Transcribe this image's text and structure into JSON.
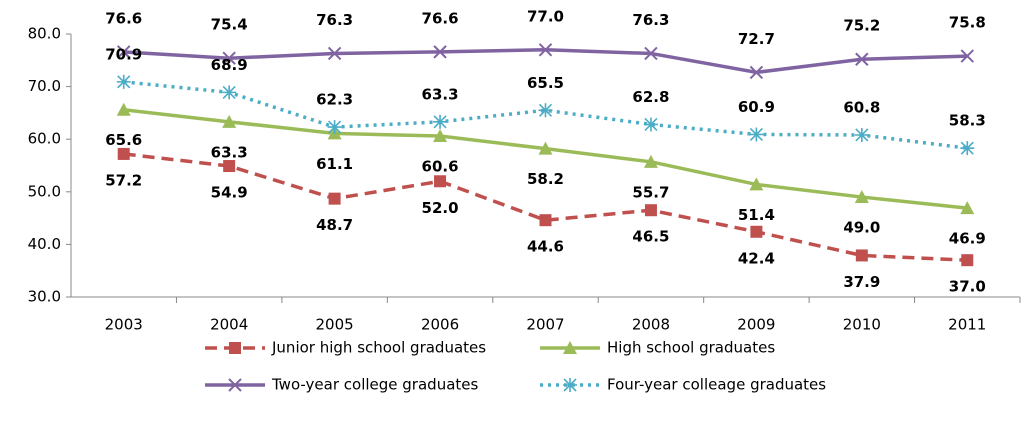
{
  "chart_data": {
    "type": "line",
    "categories": [
      "2003",
      "2004",
      "2005",
      "2006",
      "2007",
      "2008",
      "2009",
      "2010",
      "2011"
    ],
    "series": [
      {
        "name": "Junior high school graduates",
        "color": "#c0504d",
        "dash": "dashed",
        "marker": "square",
        "values": [
          57.2,
          54.9,
          48.7,
          52.0,
          44.6,
          46.5,
          42.4,
          37.9,
          37.0
        ],
        "value_labels": [
          "57.2",
          "54.9",
          "48.7",
          "52.0",
          "44.6",
          "46.5",
          "42.4",
          "37.9",
          "37.0"
        ]
      },
      {
        "name": "High school graduates",
        "color": "#9bbb59",
        "dash": "solid",
        "marker": "triangle",
        "values": [
          65.6,
          63.3,
          61.1,
          60.6,
          58.2,
          55.7,
          51.4,
          49.0,
          46.9
        ],
        "value_labels": [
          "65.6",
          "63.3",
          "61.1",
          "60.6",
          "58.2",
          "55.7",
          "51.4",
          "49.0",
          "46.9"
        ]
      },
      {
        "name": "Two-year college graduates",
        "color": "#8064a2",
        "dash": "solid",
        "marker": "x",
        "values": [
          76.6,
          75.4,
          76.3,
          76.6,
          77.0,
          76.3,
          72.7,
          75.2,
          75.8
        ],
        "value_labels": [
          "76.6",
          "75.4",
          "76.3",
          "76.6",
          "77.0",
          "76.3",
          "72.7",
          "75.2",
          "75.8"
        ]
      },
      {
        "name": "Four-year colleage graduates",
        "color": "#4bacc6",
        "dash": "dotted",
        "marker": "asterisk",
        "values": [
          70.9,
          68.9,
          62.3,
          63.3,
          65.5,
          62.8,
          60.9,
          60.8,
          58.3
        ],
        "value_labels": [
          "70.9",
          "68.9",
          "62.3",
          "63.3",
          "65.5",
          "62.8",
          "60.9",
          "60.8",
          "58.3"
        ]
      }
    ],
    "ylim": [
      30,
      80
    ],
    "yticks": [
      {
        "value": 30,
        "label": "30.0"
      },
      {
        "value": 40,
        "label": "40.0"
      },
      {
        "value": 50,
        "label": "50.0"
      },
      {
        "value": 60,
        "label": "60.0"
      },
      {
        "value": 70,
        "label": "70.0"
      },
      {
        "value": 80,
        "label": "80.0"
      }
    ],
    "grid": false,
    "legend": "bottom"
  }
}
